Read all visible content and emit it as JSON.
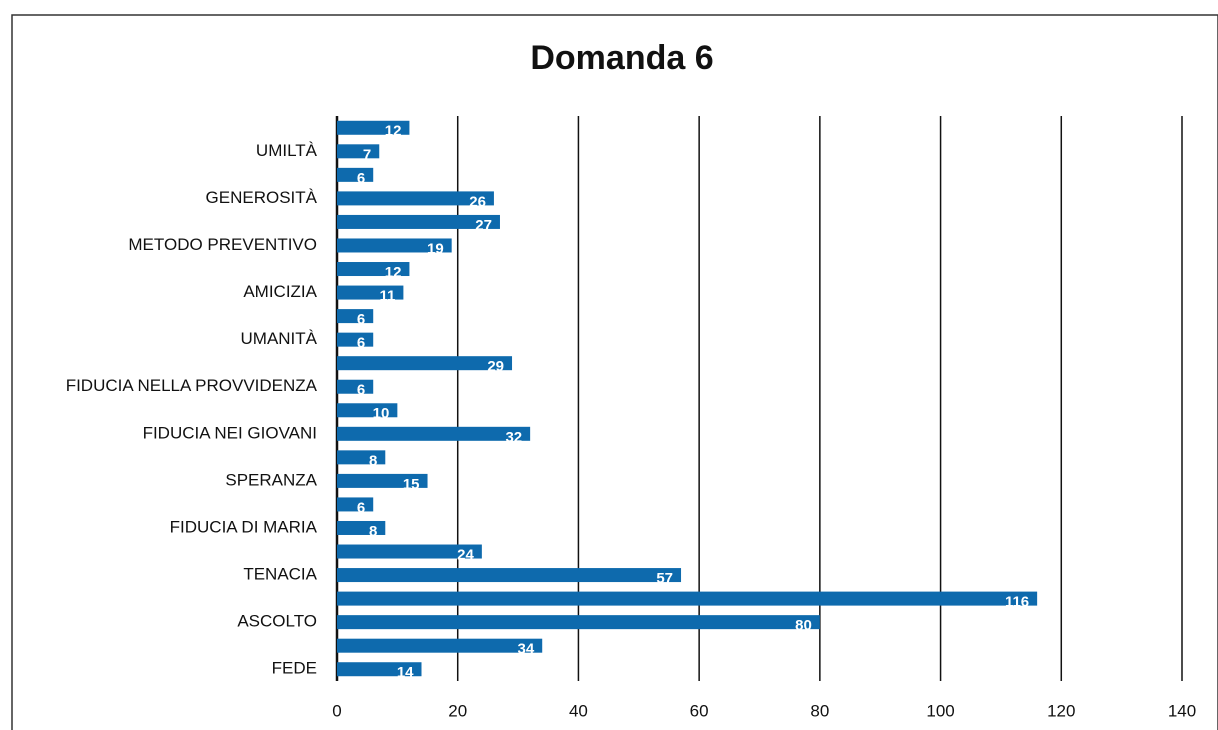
{
  "chart_data": {
    "type": "barh",
    "title": "Domanda 6",
    "categories": [
      "FEDE",
      null,
      "ASCOLTO",
      null,
      "TENACIA",
      null,
      "FIDUCIA DI MARIA",
      null,
      "SPERANZA",
      null,
      "FIDUCIA NEI GIOVANI",
      null,
      "FIDUCIA NELLA PROVVIDENZA",
      null,
      "UMANITÀ",
      null,
      "AMICIZIA",
      null,
      "METODO PREVENTIVO",
      null,
      "GENEROSITÀ",
      null,
      "UMILTÀ",
      null
    ],
    "values": [
      14,
      34,
      80,
      116,
      57,
      24,
      8,
      6,
      15,
      8,
      32,
      10,
      6,
      29,
      6,
      6,
      11,
      12,
      19,
      27,
      26,
      6,
      7,
      12
    ],
    "color": "#0e6aad",
    "xlim": [
      0,
      140
    ],
    "xticks": [
      0,
      20,
      40,
      60,
      80,
      100,
      120,
      140
    ],
    "grid": true
  }
}
